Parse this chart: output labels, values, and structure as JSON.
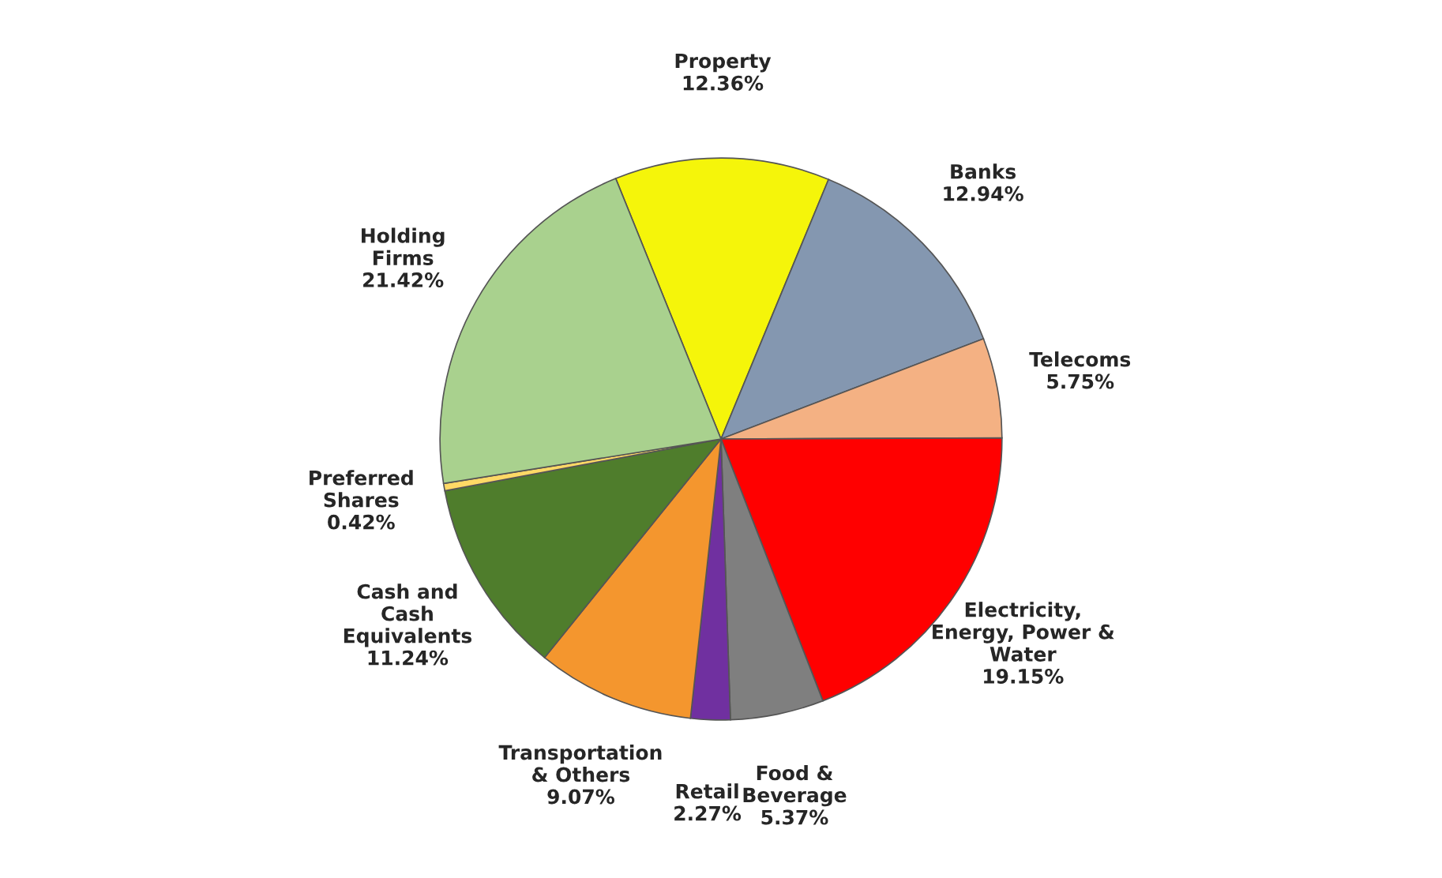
{
  "chart_data": {
    "type": "pie",
    "categories": [
      "Property",
      "Banks",
      "Telecoms",
      "Electricity,\nEnergy, Power &\nWater",
      "Food &\nBeverage",
      "Retail",
      "Transportation\n& Others",
      "Cash and\nCash\nEquivalents",
      "Preferred\nShares",
      "Holding\nFirms"
    ],
    "values": [
      12.36,
      12.94,
      5.75,
      19.15,
      5.37,
      2.27,
      9.07,
      11.24,
      0.42,
      21.42
    ],
    "value_labels": [
      "12.36%",
      "12.94%",
      "5.75%",
      "19.15%",
      "5.37%",
      "2.27%",
      "9.07%",
      "11.24%",
      "0.42%",
      "21.42%"
    ],
    "colors": [
      "#f5f50a",
      "#8497b0",
      "#f4b183",
      "#ff0000",
      "#7f7f7f",
      "#7030a0",
      "#f4962e",
      "#4f7d2c",
      "#ffd966",
      "#a9d18e"
    ],
    "legend": false
  }
}
